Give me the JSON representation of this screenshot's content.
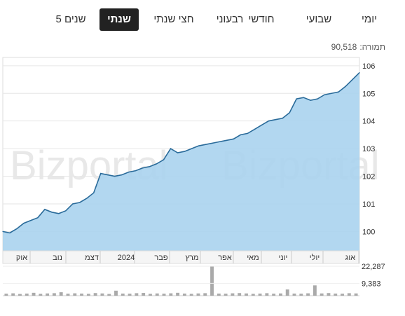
{
  "range_tabs": [
    {
      "label": "יומי",
      "active": false
    },
    {
      "label": "שבועי",
      "active": false
    },
    {
      "label": "חודשי",
      "active": false
    },
    {
      "label": "רבעוני",
      "active": false
    },
    {
      "label": "חצי שנתי",
      "active": false
    },
    {
      "label": "שנתי",
      "active": true
    },
    {
      "label": "5 שנים",
      "active": false
    }
  ],
  "turnover": {
    "label": "תמורה:",
    "value": "90,518"
  },
  "watermark": "Bizportal",
  "colors": {
    "line": "#2a6b9a",
    "fill": "#aad3ee",
    "grid": "#e6e6e6",
    "volume": "#aaaaaa"
  },
  "chart_data": {
    "type": "area",
    "title": "",
    "ylim": [
      99.3,
      106.3
    ],
    "y_ticks": [
      "100",
      "101",
      "102",
      "103",
      "104",
      "105",
      "106"
    ],
    "x_tick_labels": [
      "אוק",
      "נוב",
      "דצמ",
      "2024",
      "פבר",
      "מרץ",
      "אפר",
      "מאי",
      "יוני",
      "יולי",
      "אוג"
    ],
    "series": [
      {
        "values": [
          100.0,
          99.95,
          100.1,
          100.3,
          100.4,
          100.5,
          100.8,
          100.7,
          100.65,
          100.75,
          101.0,
          101.05,
          101.2,
          101.4,
          102.1,
          102.05,
          102.0,
          102.05,
          102.15,
          102.2,
          102.3,
          102.35,
          102.45,
          102.6,
          103.0,
          102.85,
          102.9,
          103.0,
          103.1,
          103.15,
          103.2,
          103.25,
          103.3,
          103.35,
          103.5,
          103.55,
          103.7,
          103.85,
          104.0,
          104.05,
          104.1,
          104.3,
          104.8,
          104.85,
          104.75,
          104.8,
          104.95,
          105.0,
          105.05,
          105.25,
          105.5,
          105.75
        ]
      }
    ],
    "volume": {
      "axis_labels": [
        "22,287",
        "9,383"
      ],
      "values": [
        1500,
        1800,
        1300,
        1600,
        2200,
        1400,
        1700,
        1900,
        2600,
        1500,
        1800,
        1600,
        1400,
        2000,
        1700,
        1300,
        3800,
        1600,
        1500,
        1900,
        2100,
        1400,
        1700,
        1500,
        1800,
        2200,
        1600,
        1400,
        1700,
        1900,
        22287,
        1600,
        1500,
        1800,
        2000,
        1700,
        1400,
        1600,
        1900,
        1500,
        1700,
        4700,
        1600,
        1500,
        1800,
        7800,
        1700,
        2000,
        1600,
        1500,
        1900,
        1700
      ]
    }
  }
}
